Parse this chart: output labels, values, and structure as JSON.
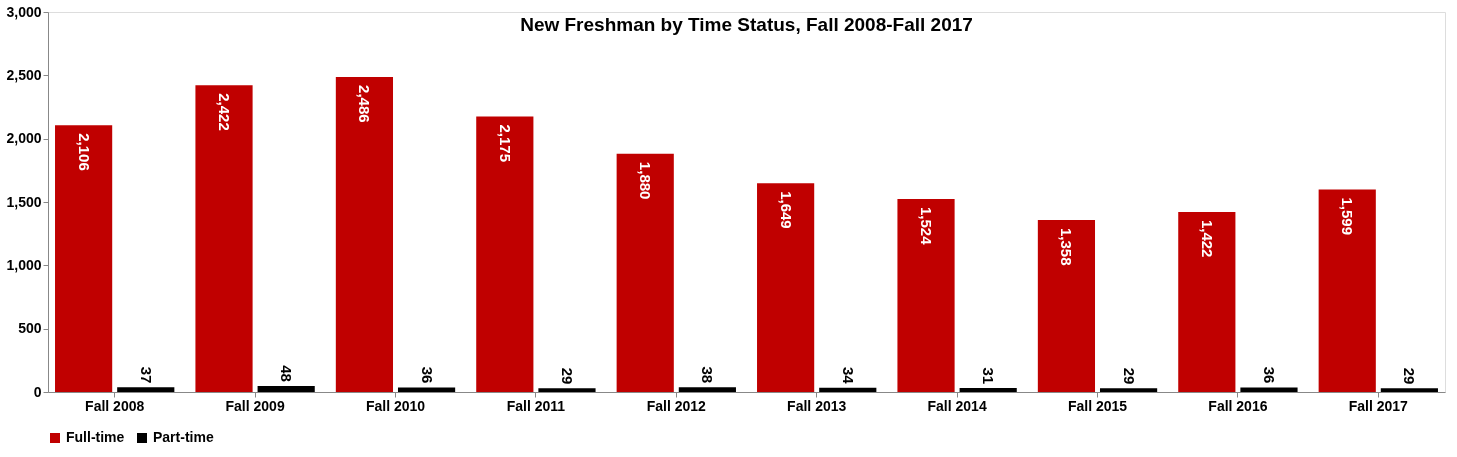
{
  "chart_data": {
    "type": "bar",
    "title": "New Freshman by Time Status, Fall 2008-Fall 2017",
    "categories": [
      "Fall 2008",
      "Fall 2009",
      "Fall 2010",
      "Fall 2011",
      "Fall 2012",
      "Fall 2013",
      "Fall 2014",
      "Fall 2015",
      "Fall 2016",
      "Fall 2017"
    ],
    "series": [
      {
        "name": "Full-time",
        "color": "#c00000",
        "values": [
          2106,
          2422,
          2486,
          2175,
          1880,
          1649,
          1524,
          1358,
          1422,
          1599
        ],
        "value_labels": [
          "2,106",
          "2,422",
          "2,486",
          "2,175",
          "1,880",
          "1,649",
          "1,524",
          "1,358",
          "1,422",
          "1,599"
        ]
      },
      {
        "name": "Part-time",
        "color": "#000000",
        "values": [
          37,
          48,
          36,
          29,
          38,
          34,
          31,
          29,
          36,
          29
        ],
        "value_labels": [
          "37",
          "48",
          "36",
          "29",
          "38",
          "34",
          "31",
          "29",
          "36",
          "29"
        ]
      }
    ],
    "ylim": [
      0,
      3000
    ],
    "yticks": [
      0,
      500,
      {
        "value": 1000,
        "label": "1,000"
      },
      {
        "value": 1500,
        "label": "1,500"
      },
      {
        "value": 2000,
        "label": "2,000"
      },
      {
        "value": 2500,
        "label": "2,500"
      },
      {
        "value": 3000,
        "label": "3,000"
      }
    ],
    "grid": false,
    "legend": "bottom"
  }
}
